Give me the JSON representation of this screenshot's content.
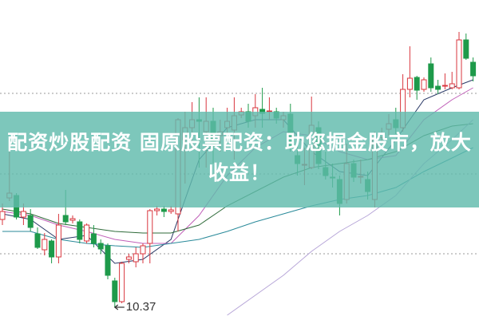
{
  "title": "配资炒股配资 固原股票配资：助您掘金股市，放大收益！",
  "chart_data": {
    "type": "candlestick",
    "colors": {
      "up": "#d9363e",
      "down": "#1e9a4a",
      "banner": "#60bbac"
    },
    "grid": "dotted horizontal",
    "annotations": [
      {
        "text": "10.37",
        "candle_index": 16,
        "kind": "low-arrow"
      }
    ],
    "candles": [
      [
        12.57,
        12.77,
        12.97,
        12.43
      ],
      [
        13.11,
        13.23,
        14.27,
        13.03
      ],
      [
        13.17,
        12.63,
        13.23,
        12.57
      ],
      [
        12.63,
        12.77,
        12.97,
        12.43
      ],
      [
        12.67,
        12.37,
        12.83,
        12.27
      ],
      [
        12.21,
        11.87,
        12.37,
        11.83
      ],
      [
        11.81,
        12.07,
        12.23,
        11.67
      ],
      [
        12.03,
        11.63,
        12.07,
        11.47
      ],
      [
        11.63,
        12.43,
        12.71,
        11.47
      ],
      [
        12.67,
        12.51,
        13.31,
        12.43
      ],
      [
        12.55,
        12.59,
        12.67,
        12.47
      ],
      [
        12.51,
        12.07,
        12.57,
        11.97
      ],
      [
        12.03,
        12.43,
        12.47,
        11.97
      ],
      [
        12.21,
        11.97,
        12.43,
        11.87
      ],
      [
        11.97,
        11.83,
        12.07,
        11.71
      ],
      [
        11.91,
        11.17,
        11.97,
        11.07
      ],
      [
        11.03,
        10.51,
        11.11,
        10.37
      ],
      [
        10.51,
        11.47,
        11.51,
        10.47
      ],
      [
        11.57,
        11.63,
        11.71,
        11.47
      ],
      [
        11.51,
        11.71,
        11.87,
        11.37
      ],
      [
        11.71,
        11.91,
        11.97,
        11.47
      ],
      [
        11.97,
        12.79,
        12.83,
        11.47
      ],
      [
        12.79,
        12.83,
        12.91,
        12.67
      ],
      [
        12.83,
        12.77,
        12.91,
        12.63
      ],
      [
        12.77,
        12.81,
        12.91,
        12.71
      ],
      [
        12.71,
        15.07,
        15.11,
        12.27
      ],
      [
        14.57,
        14.87,
        15.27,
        13.47
      ],
      [
        14.87,
        15.07,
        15.51,
        14.37
      ],
      [
        15.07,
        15.03,
        15.63,
        13.87
      ],
      [
        14.77,
        15.03,
        15.63,
        13.87
      ],
      [
        15.03,
        14.47,
        15.37,
        13.97
      ],
      [
        14.67,
        14.77,
        15.07,
        14.27
      ],
      [
        14.87,
        15.03,
        15.37,
        14.57
      ],
      [
        14.81,
        15.17,
        15.63,
        14.07
      ],
      [
        15.19,
        15.27,
        15.37,
        15.11
      ],
      [
        15.27,
        15.03,
        15.47,
        14.87
      ],
      [
        15.17,
        15.37,
        15.71,
        14.87
      ],
      [
        15.33,
        15.23,
        15.87,
        14.87
      ],
      [
        15.27,
        15.29,
        15.63,
        15.07
      ],
      [
        15.27,
        15.11,
        15.37,
        14.97
      ],
      [
        15.07,
        15.17,
        15.27,
        14.87
      ],
      [
        15.21,
        14.37,
        15.47,
        14.27
      ],
      [
        14.17,
        13.97,
        14.47,
        13.67
      ],
      [
        13.93,
        13.95,
        14.37,
        13.43
      ],
      [
        13.87,
        14.93,
        15.65,
        13.83
      ],
      [
        14.87,
        13.97,
        15.03,
        13.83
      ],
      [
        13.87,
        13.67,
        14.27,
        13.57
      ],
      [
        13.63,
        13.61,
        13.97,
        13.37
      ],
      [
        13.57,
        12.97,
        13.67,
        12.67
      ],
      [
        13.07,
        13.97,
        14.47,
        12.97
      ],
      [
        13.97,
        13.63,
        14.07,
        13.51
      ],
      [
        13.63,
        13.65,
        14.07,
        13.47
      ],
      [
        13.57,
        13.27,
        13.77,
        13.07
      ],
      [
        13.07,
        14.57,
        14.77,
        12.87
      ],
      [
        14.63,
        14.71,
        14.87,
        14.51
      ],
      [
        14.83,
        14.97,
        15.21,
        14.67
      ],
      [
        15.07,
        14.87,
        15.37,
        14.71
      ],
      [
        14.87,
        15.83,
        16.21,
        14.77
      ],
      [
        15.83,
        16.11,
        16.91,
        15.63
      ],
      [
        16.13,
        15.81,
        16.17,
        15.57
      ],
      [
        15.83,
        16.07,
        16.13,
        15.77
      ],
      [
        16.47,
        15.87,
        16.63,
        15.77
      ],
      [
        15.91,
        15.83,
        16.07,
        15.71
      ],
      [
        15.91,
        15.93,
        16.23,
        15.83
      ],
      [
        15.87,
        15.97,
        16.27,
        15.83
      ],
      [
        15.87,
        17.07,
        17.27,
        15.83
      ],
      [
        17.07,
        16.61,
        17.23,
        16.57
      ],
      [
        16.51,
        16.17,
        16.63,
        16.03
      ]
    ],
    "candle_fields": [
      "open",
      "close",
      "high",
      "low"
    ],
    "ma_index": [
      0,
      4,
      8,
      12,
      16,
      20,
      24,
      28,
      32,
      36,
      40,
      44,
      48,
      52,
      56,
      60,
      64,
      67
    ],
    "moving_averages": [
      {
        "color": "#2b3a67",
        "values": [
          12.71,
          12.57,
          12.07,
          12.17,
          11.47,
          11.57,
          12.07,
          14.07,
          14.87,
          15.07,
          15.07,
          14.27,
          13.77,
          13.67,
          14.57,
          15.57,
          15.87,
          16.07
        ]
      },
      {
        "color": "#c060b8",
        "values": [
          12.77,
          12.67,
          12.43,
          12.27,
          12.07,
          11.97,
          11.97,
          12.67,
          13.67,
          14.37,
          14.77,
          14.67,
          14.27,
          14.07,
          14.17,
          15.07,
          15.57,
          15.87
        ]
      },
      {
        "color": "#2f6b3a",
        "values": [
          12.83,
          12.71,
          12.47,
          12.37,
          12.27,
          12.23,
          12.23,
          12.43,
          12.91,
          13.27,
          13.63,
          13.87,
          13.97,
          14.07,
          14.27,
          14.67,
          14.91,
          14.97
        ]
      },
      {
        "color": "#2a8a9a",
        "values": [
          12.27,
          12.27,
          12.07,
          11.97,
          11.91,
          11.87,
          11.97,
          12.07,
          12.27,
          12.51,
          12.71,
          12.91,
          13.07,
          13.17,
          13.37,
          13.77,
          14.11,
          14.37
        ]
      },
      {
        "color": "#b7a6d8",
        "values": [
          null,
          null,
          null,
          null,
          null,
          null,
          null,
          null,
          10.17,
          10.67,
          11.17,
          11.77,
          12.27,
          12.67,
          13.17,
          13.97,
          14.57,
          15.07
        ]
      }
    ]
  }
}
